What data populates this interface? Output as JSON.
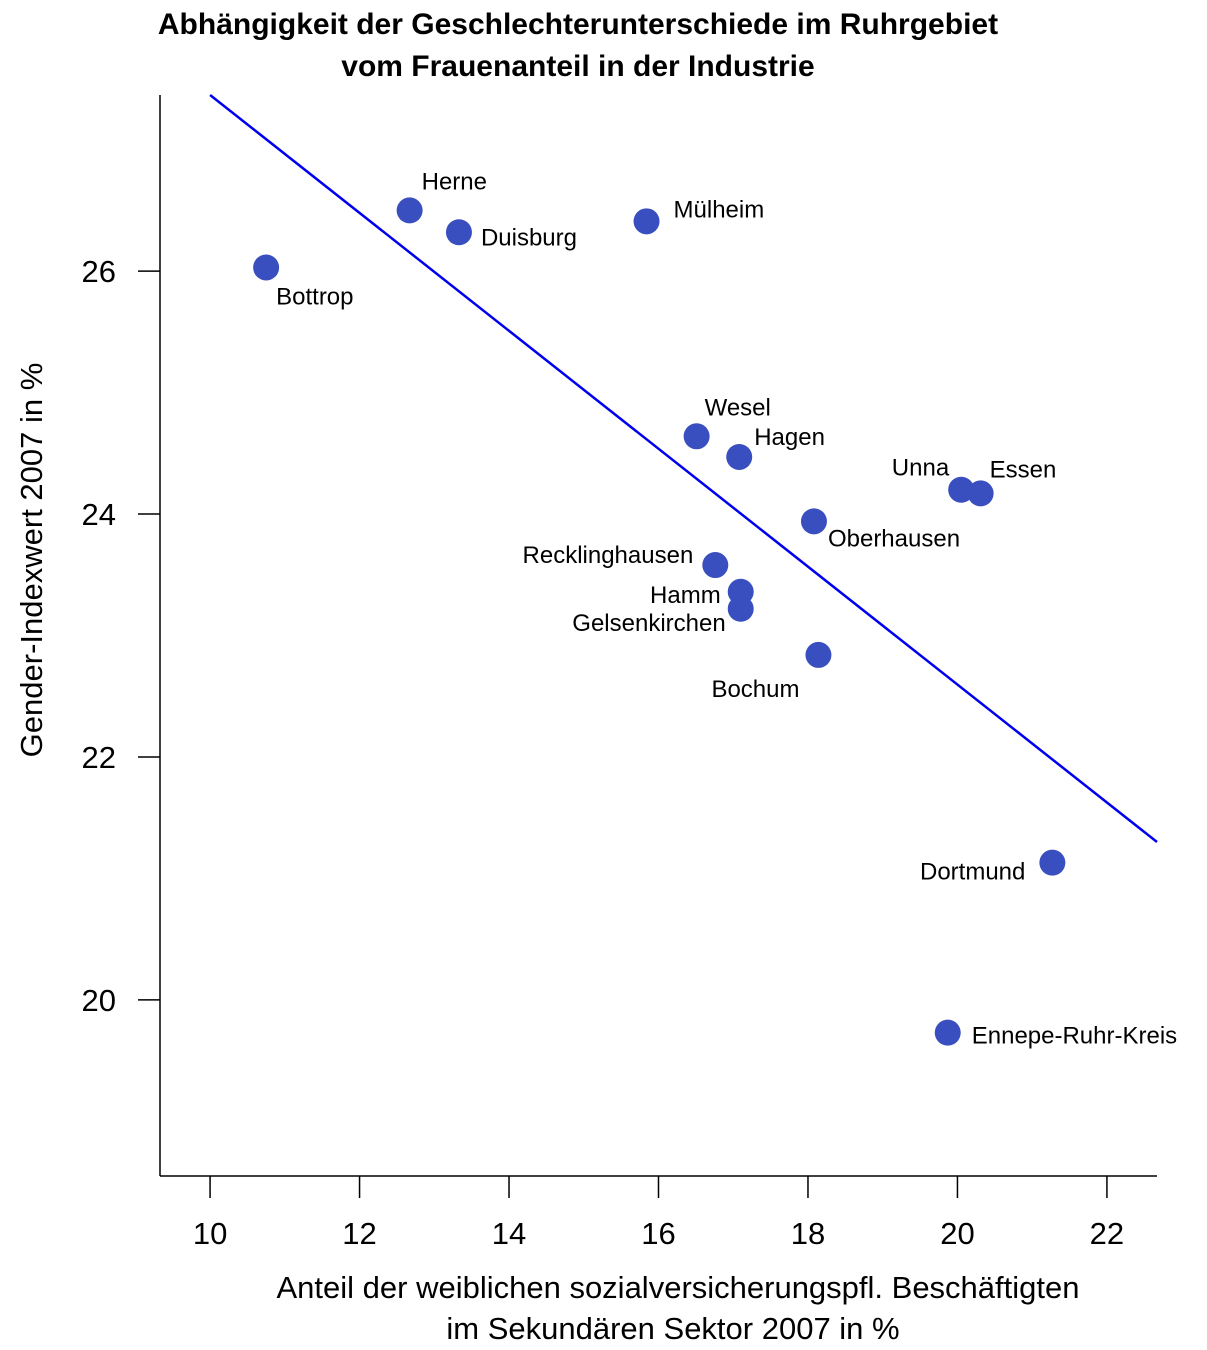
{
  "chart_data": {
    "type": "scatter",
    "title": [
      "Abhängigkeit der Geschlechterunterschiede im Ruhrgebiet",
      "vom Frauenanteil in der Industrie"
    ],
    "xlabel": [
      "Anteil der weiblichen sozialversicherungspfl. Beschäftigten",
      "im Sekundären Sektor 2007 in %"
    ],
    "ylabel": "Gender-Indexwert 2007 in %",
    "xlim": [
      9.33,
      22.67
    ],
    "ylim": [
      18.55,
      27.45
    ],
    "xticks": [
      10,
      12,
      14,
      16,
      18,
      20,
      22
    ],
    "yticks": [
      20,
      22,
      24,
      26
    ],
    "point_color": "#3a4fbf",
    "line_color": "#0000ee",
    "grid": false,
    "trend_line": {
      "x": [
        10.0,
        22.67
      ],
      "y": [
        27.45,
        21.3
      ]
    },
    "points": [
      {
        "name": "Herne",
        "x": 12.67,
        "y": 26.5
      },
      {
        "name": "Duisburg",
        "x": 13.33,
        "y": 26.32
      },
      {
        "name": "Mülheim",
        "x": 15.84,
        "y": 26.41
      },
      {
        "name": "Bottrop",
        "x": 10.75,
        "y": 26.03
      },
      {
        "name": "Wesel",
        "x": 16.51,
        "y": 24.64
      },
      {
        "name": "Hagen",
        "x": 17.08,
        "y": 24.47
      },
      {
        "name": "Unna",
        "x": 20.05,
        "y": 24.2
      },
      {
        "name": "Essen",
        "x": 20.31,
        "y": 24.17
      },
      {
        "name": "Oberhausen",
        "x": 18.08,
        "y": 23.94
      },
      {
        "name": "Recklinghausen",
        "x": 16.76,
        "y": 23.58
      },
      {
        "name": "Hamm",
        "x": 17.1,
        "y": 23.36
      },
      {
        "name": "Gelsenkirchen",
        "x": 17.1,
        "y": 23.22
      },
      {
        "name": "Bochum",
        "x": 18.14,
        "y": 22.84
      },
      {
        "name": "Dortmund",
        "x": 21.27,
        "y": 21.13
      },
      {
        "name": "Ennepe-Ruhr-Kreis",
        "x": 19.87,
        "y": 19.73
      }
    ]
  }
}
